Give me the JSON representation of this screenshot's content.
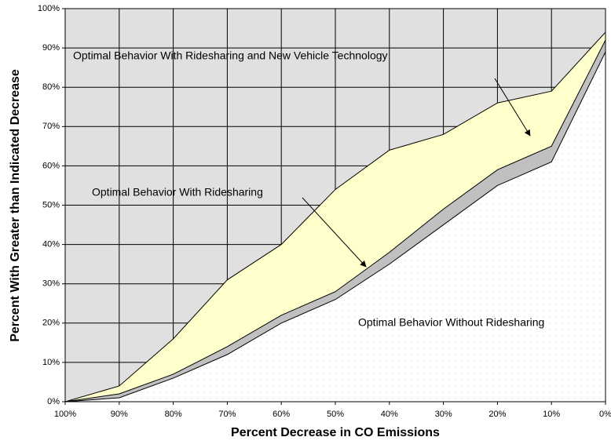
{
  "chart_data": {
    "type": "area",
    "xlabel": "Percent Decrease in CO Emissions",
    "ylabel": "Percent With Greater than Indicated Decrease",
    "categories": [
      "100%",
      "90%",
      "80%",
      "70%",
      "60%",
      "50%",
      "40%",
      "30%",
      "20%",
      "10%",
      "0%"
    ],
    "series": [
      {
        "name": "Optimal Behavior With Ridesharing and New Vehicle Technology",
        "color": "#ffffcc",
        "values": [
          0,
          4,
          16,
          31,
          40,
          54,
          64,
          68,
          76,
          79,
          94
        ]
      },
      {
        "name": "Optimal Behavior With Ridesharing",
        "color": "#c0c0c0",
        "values": [
          0,
          2,
          7,
          14,
          22,
          28,
          38,
          49,
          59,
          65,
          92
        ]
      },
      {
        "name": "Optimal Behavior Without Ridesharing",
        "color": "#ffffff",
        "values": [
          0,
          1,
          6,
          12,
          20,
          26,
          35,
          45,
          55,
          61,
          89
        ]
      }
    ],
    "ylim": [
      0,
      100
    ],
    "yticks": [
      {
        "value": 0,
        "label": "0%"
      },
      {
        "value": 10,
        "label": "10%"
      },
      {
        "value": 20,
        "label": "20%"
      },
      {
        "value": 30,
        "label": "30%"
      },
      {
        "value": 40,
        "label": "40%"
      },
      {
        "value": 50,
        "label": "50%"
      },
      {
        "value": 60,
        "label": "60%"
      },
      {
        "value": 70,
        "label": "70%"
      },
      {
        "value": 80,
        "label": "80%"
      },
      {
        "value": 90,
        "label": "90%"
      },
      {
        "value": 100,
        "label": "100%"
      }
    ],
    "grid": true,
    "background": "#e0e0e0"
  }
}
